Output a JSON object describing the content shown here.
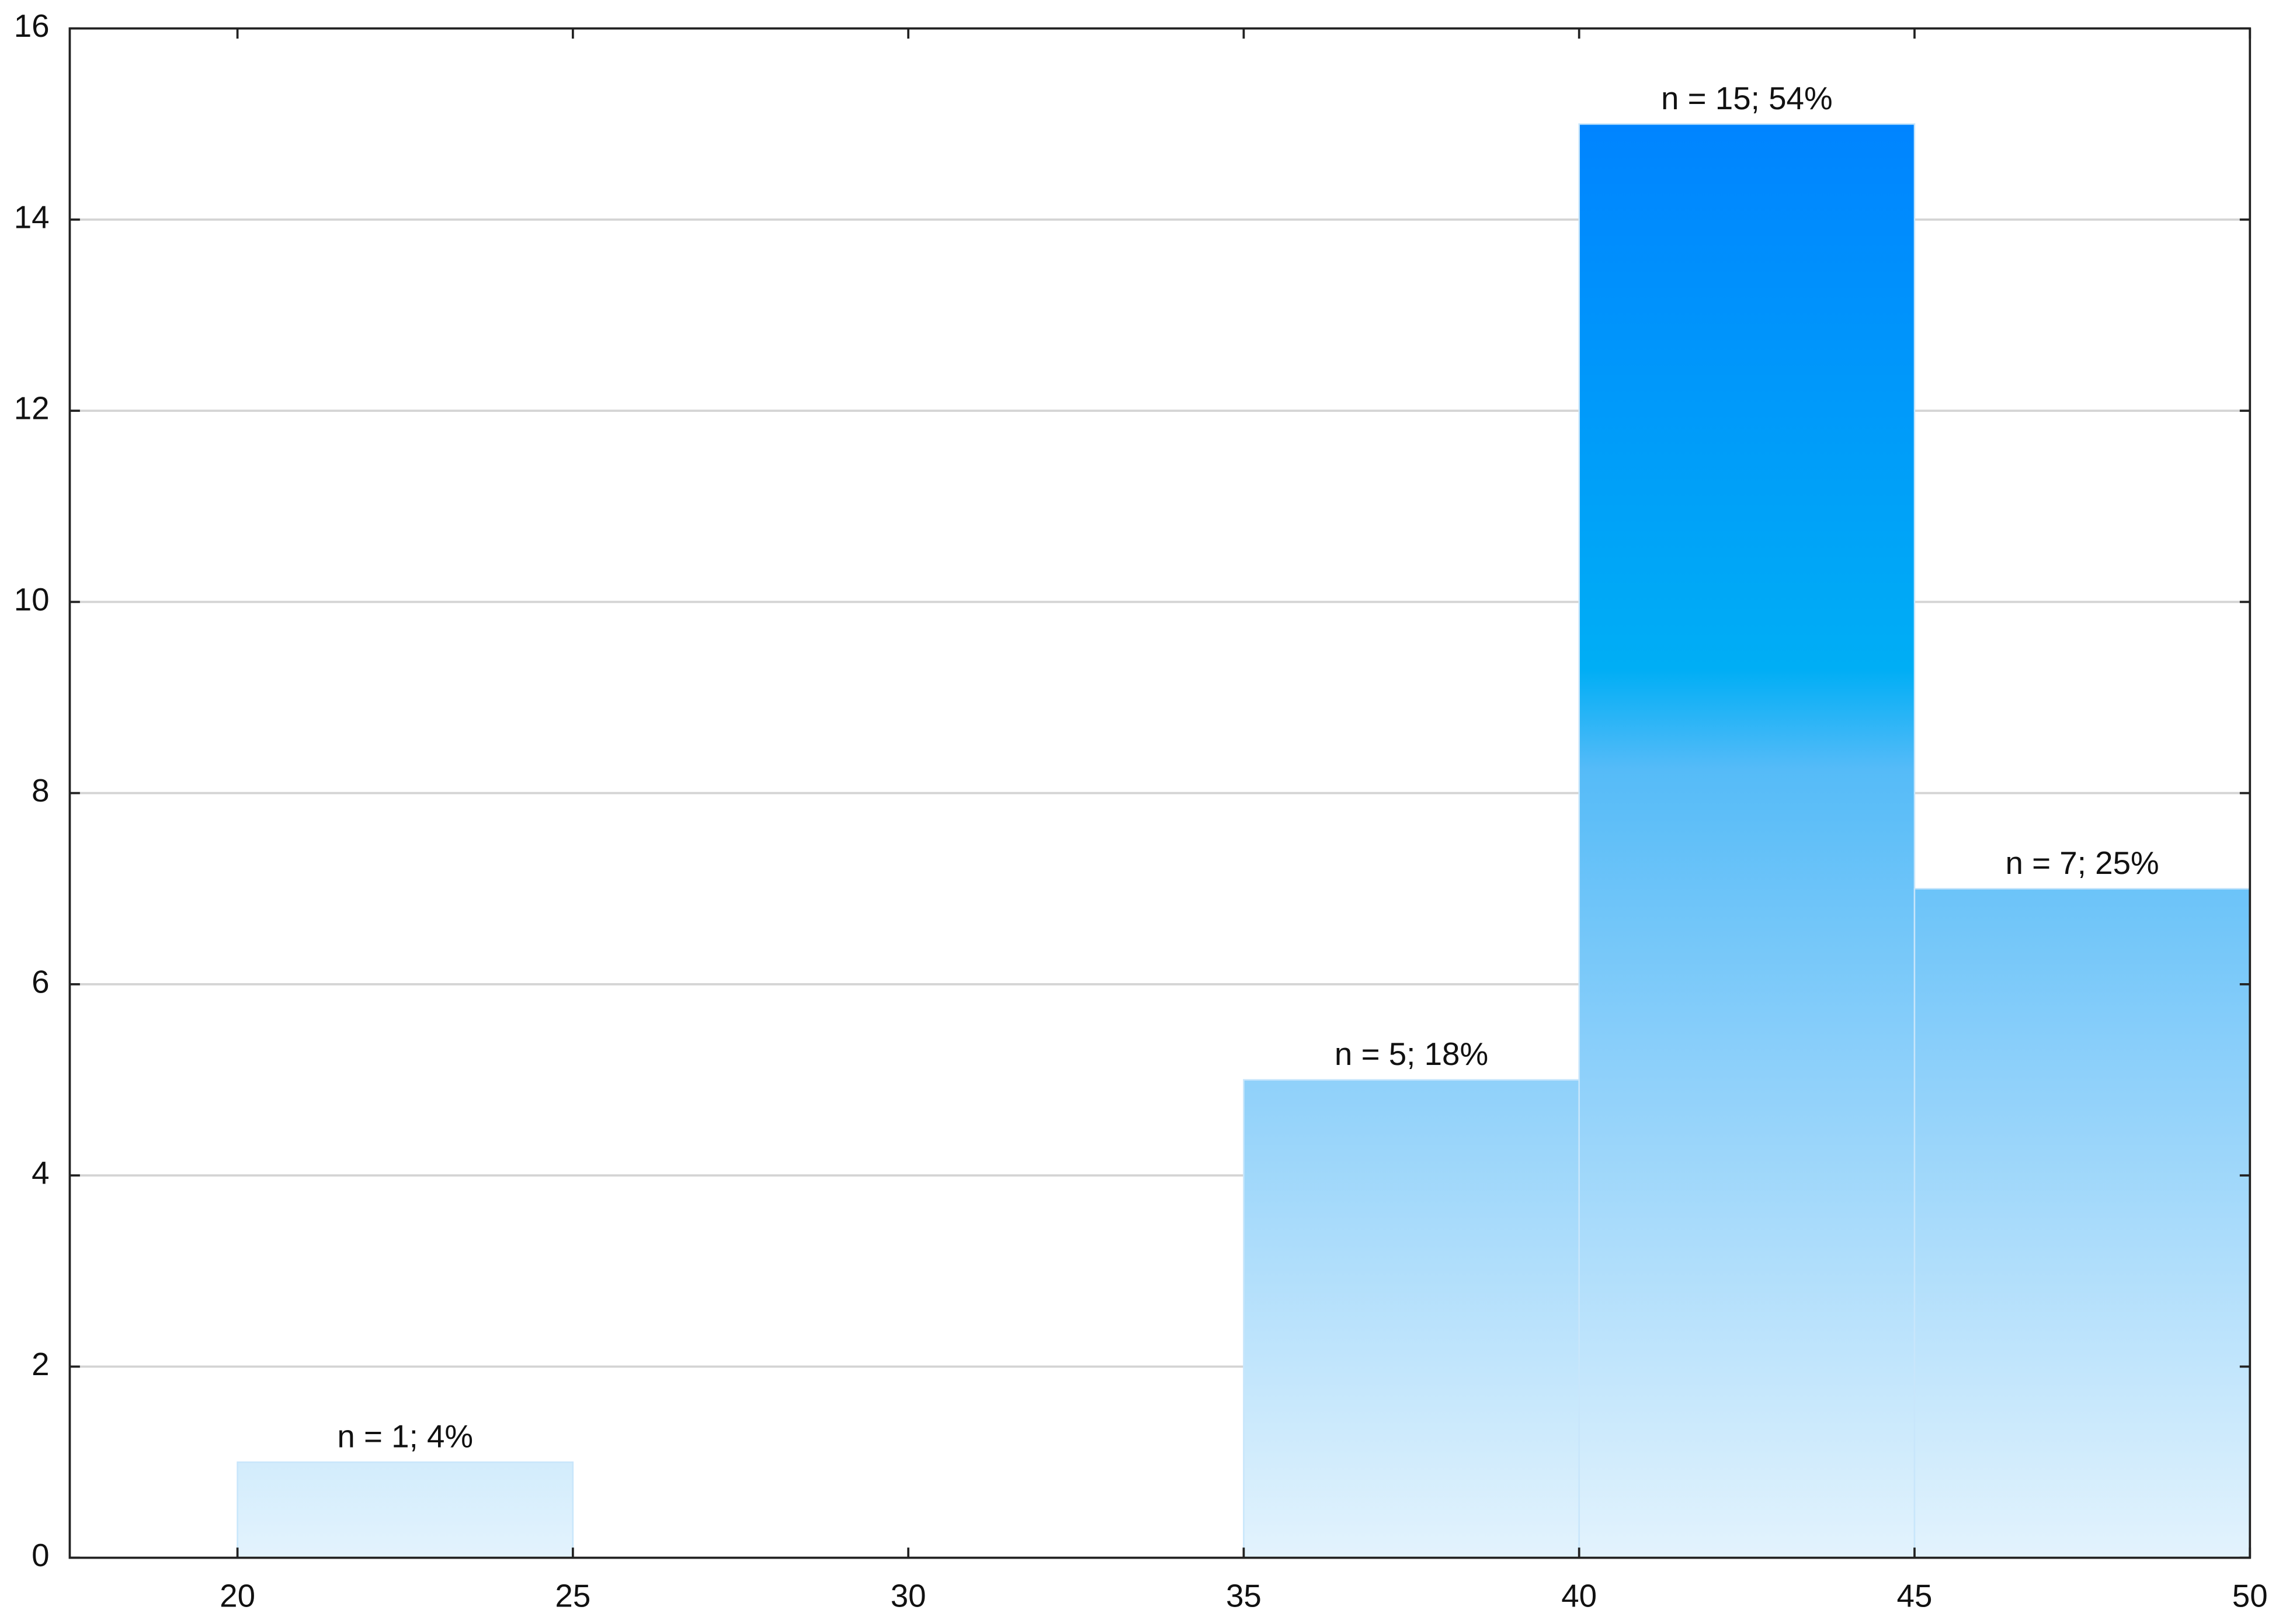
{
  "chart_data": {
    "type": "histogram",
    "bins": [
      20,
      25,
      30,
      35,
      40,
      45,
      50
    ],
    "values": [
      1,
      0,
      0,
      5,
      15,
      7
    ],
    "value_labels": [
      "n = 1; 4%",
      null,
      null,
      "n = 5; 18%",
      "n = 15; 54%",
      "n = 7; 25%"
    ],
    "xlim": [
      17.5,
      50
    ],
    "xticks": [
      20,
      25,
      30,
      35,
      40,
      45,
      50
    ],
    "ylim": [
      0,
      16
    ],
    "yticks": [
      0,
      2,
      4,
      6,
      8,
      10,
      12,
      14,
      16
    ],
    "grid": true
  }
}
